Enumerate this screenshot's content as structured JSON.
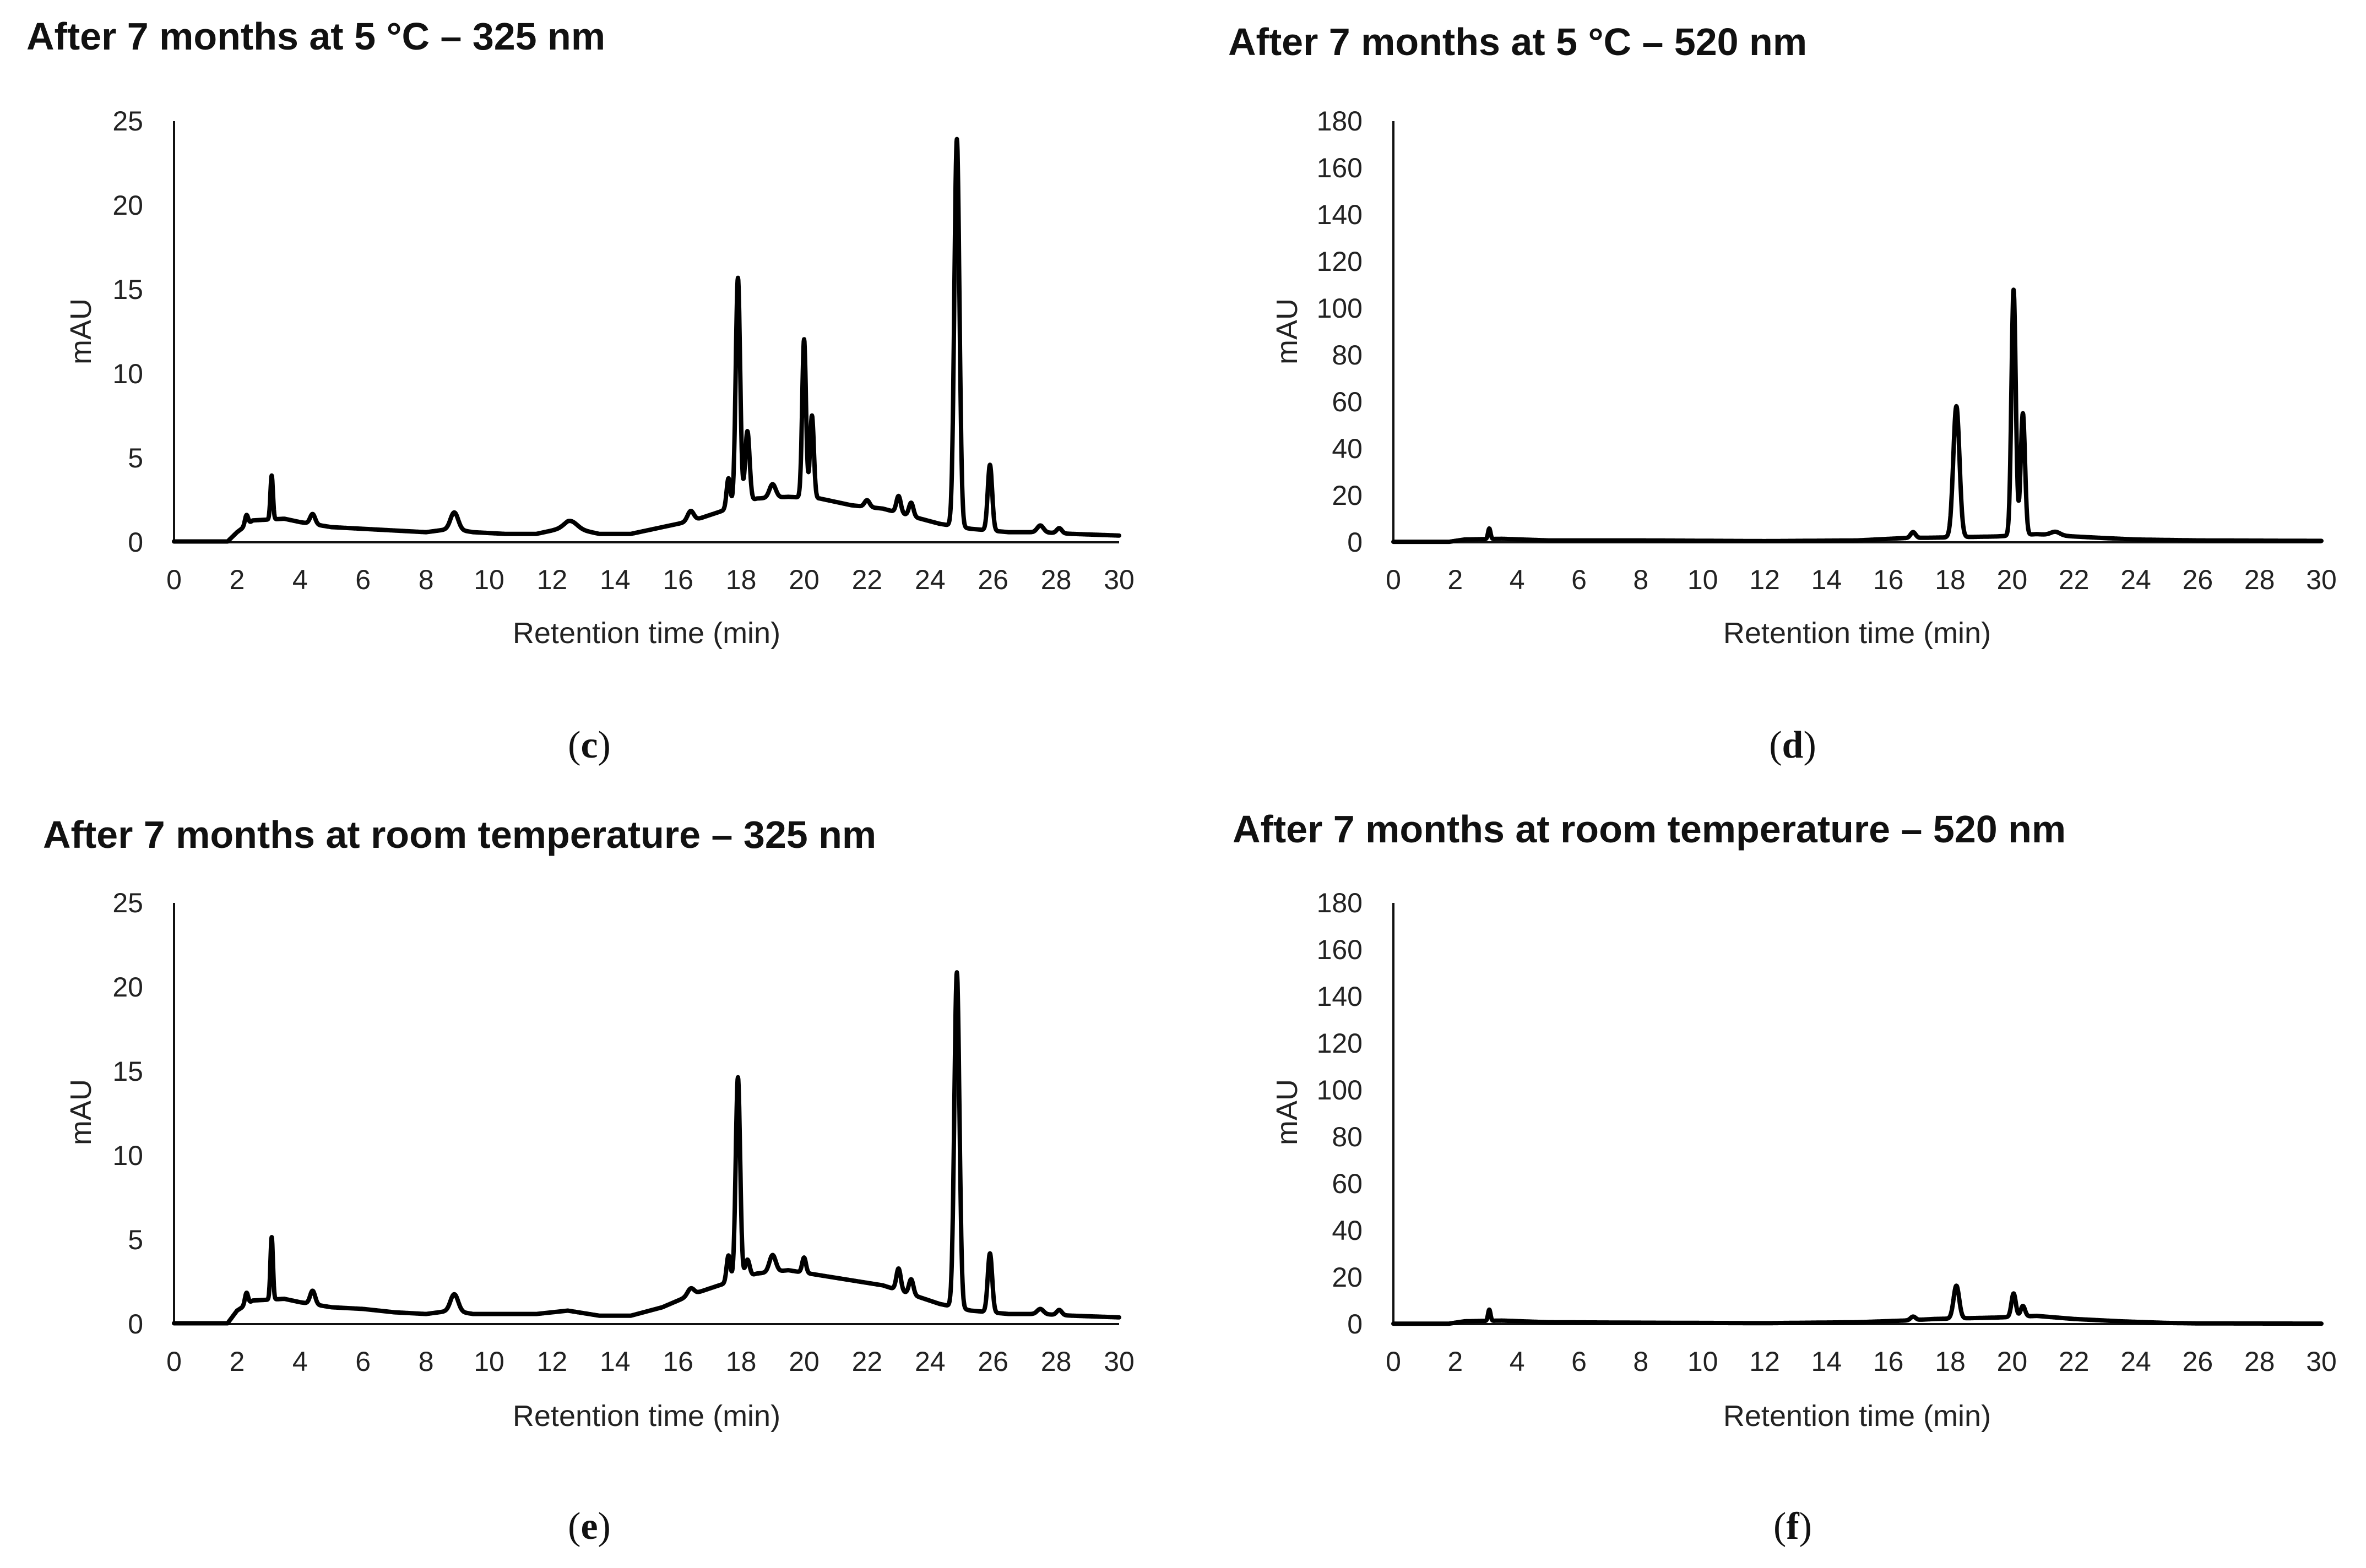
{
  "chart_data": [
    {
      "type": "line",
      "panel": "c",
      "title": "After 7 months at 5 °C – 325 nm",
      "caption_letter": "c",
      "xlabel": "Retention time (min)",
      "ylabel": "mAU",
      "xlim": [
        0,
        30
      ],
      "ylim": [
        0,
        25
      ],
      "xticks": [
        0,
        2,
        4,
        6,
        8,
        10,
        12,
        14,
        16,
        18,
        20,
        22,
        24,
        26,
        28,
        30
      ],
      "yticks": [
        0,
        5,
        10,
        15,
        20,
        25
      ],
      "grid": false,
      "baseline": [
        [
          0,
          0.05
        ],
        [
          1.7,
          0.05
        ],
        [
          2.0,
          0.6
        ],
        [
          2.5,
          1.3
        ],
        [
          3.5,
          1.4
        ],
        [
          4.0,
          1.2
        ],
        [
          5.0,
          0.9
        ],
        [
          6.0,
          0.8
        ],
        [
          7.0,
          0.7
        ],
        [
          8.0,
          0.6
        ],
        [
          8.8,
          0.8
        ],
        [
          9.5,
          0.6
        ],
        [
          10.5,
          0.5
        ],
        [
          11.5,
          0.5
        ],
        [
          12.5,
          0.9
        ],
        [
          13.5,
          0.5
        ],
        [
          14.5,
          0.5
        ],
        [
          15.5,
          0.9
        ],
        [
          16.5,
          1.3
        ],
        [
          17.3,
          1.8
        ],
        [
          18.5,
          2.6
        ],
        [
          19.5,
          2.7
        ],
        [
          20.5,
          2.6
        ],
        [
          21.5,
          2.2
        ],
        [
          22.5,
          2.0
        ],
        [
          23.5,
          1.5
        ],
        [
          24.3,
          1.1
        ],
        [
          25.3,
          0.8
        ],
        [
          26.5,
          0.6
        ],
        [
          27.5,
          0.6
        ],
        [
          28.5,
          0.5
        ],
        [
          30,
          0.4
        ]
      ],
      "peaks": [
        {
          "rt": 2.3,
          "height": 0.6,
          "width": 0.05
        },
        {
          "rt": 3.1,
          "height": 2.6,
          "width": 0.04
        },
        {
          "rt": 4.4,
          "height": 0.6,
          "width": 0.08
        },
        {
          "rt": 8.9,
          "height": 1.0,
          "width": 0.12
        },
        {
          "rt": 12.6,
          "height": 0.4,
          "width": 0.2
        },
        {
          "rt": 16.4,
          "height": 0.6,
          "width": 0.1
        },
        {
          "rt": 17.6,
          "height": 1.8,
          "width": 0.06
        },
        {
          "rt": 17.9,
          "height": 13.5,
          "width": 0.07
        },
        {
          "rt": 18.2,
          "height": 4.2,
          "width": 0.07
        },
        {
          "rt": 19.0,
          "height": 0.8,
          "width": 0.1
        },
        {
          "rt": 20.0,
          "height": 9.4,
          "width": 0.06
        },
        {
          "rt": 20.25,
          "height": 4.9,
          "width": 0.06
        },
        {
          "rt": 22.0,
          "height": 0.4,
          "width": 0.08
        },
        {
          "rt": 23.0,
          "height": 1.0,
          "width": 0.07
        },
        {
          "rt": 23.4,
          "height": 0.8,
          "width": 0.07
        },
        {
          "rt": 24.85,
          "height": 23.0,
          "width": 0.08
        },
        {
          "rt": 25.9,
          "height": 3.9,
          "width": 0.07
        },
        {
          "rt": 27.5,
          "height": 0.4,
          "width": 0.1
        },
        {
          "rt": 28.1,
          "height": 0.3,
          "width": 0.08
        }
      ]
    },
    {
      "type": "line",
      "panel": "d",
      "title": "After 7 months at 5 °C – 520 nm",
      "caption_letter": "d",
      "xlabel": "Retention time (min)",
      "ylabel": "mAU",
      "xlim": [
        0,
        30
      ],
      "ylim": [
        0,
        180
      ],
      "xticks": [
        0,
        2,
        4,
        6,
        8,
        10,
        12,
        14,
        16,
        18,
        20,
        22,
        24,
        26,
        28,
        30
      ],
      "yticks": [
        0,
        20,
        40,
        60,
        80,
        100,
        120,
        140,
        160,
        180
      ],
      "grid": false,
      "baseline": [
        [
          0,
          0.2
        ],
        [
          1.8,
          0.2
        ],
        [
          2.3,
          1.2
        ],
        [
          3.5,
          1.5
        ],
        [
          5,
          0.8
        ],
        [
          8,
          0.8
        ],
        [
          12,
          0.5
        ],
        [
          15,
          0.8
        ],
        [
          16.5,
          1.8
        ],
        [
          17.5,
          2.0
        ],
        [
          19.5,
          2.5
        ],
        [
          20.8,
          3.5
        ],
        [
          22,
          2.5
        ],
        [
          23,
          1.8
        ],
        [
          24,
          1.2
        ],
        [
          26,
          0.8
        ],
        [
          30,
          0.6
        ]
      ],
      "peaks": [
        {
          "rt": 3.1,
          "height": 4.5,
          "width": 0.04
        },
        {
          "rt": 16.8,
          "height": 2.5,
          "width": 0.08
        },
        {
          "rt": 18.2,
          "height": 56.0,
          "width": 0.1
        },
        {
          "rt": 20.05,
          "height": 105.0,
          "width": 0.07
        },
        {
          "rt": 20.35,
          "height": 52.0,
          "width": 0.07
        },
        {
          "rt": 21.4,
          "height": 1.5,
          "width": 0.15
        }
      ]
    },
    {
      "type": "line",
      "panel": "e",
      "title": "After 7 months at room temperature – 325 nm",
      "caption_letter": "e",
      "xlabel": "Retention time (min)",
      "ylabel": "mAU",
      "xlim": [
        0,
        30
      ],
      "ylim": [
        0,
        25
      ],
      "xticks": [
        0,
        2,
        4,
        6,
        8,
        10,
        12,
        14,
        16,
        18,
        20,
        22,
        24,
        26,
        28,
        30
      ],
      "yticks": [
        0,
        5,
        10,
        15,
        20,
        25
      ],
      "grid": false,
      "baseline": [
        [
          0,
          0.05
        ],
        [
          1.7,
          0.05
        ],
        [
          2.0,
          0.8
        ],
        [
          2.5,
          1.4
        ],
        [
          3.5,
          1.5
        ],
        [
          4.0,
          1.3
        ],
        [
          5.0,
          1.0
        ],
        [
          6.0,
          0.9
        ],
        [
          7.0,
          0.7
        ],
        [
          8.0,
          0.6
        ],
        [
          8.8,
          0.8
        ],
        [
          9.5,
          0.6
        ],
        [
          10.5,
          0.6
        ],
        [
          11.5,
          0.6
        ],
        [
          12.5,
          0.8
        ],
        [
          13.5,
          0.5
        ],
        [
          14.5,
          0.5
        ],
        [
          15.5,
          1.0
        ],
        [
          16.5,
          1.8
        ],
        [
          17.3,
          2.3
        ],
        [
          18.5,
          3.0
        ],
        [
          19.5,
          3.2
        ],
        [
          20.5,
          2.9
        ],
        [
          21.5,
          2.6
        ],
        [
          22.5,
          2.3
        ],
        [
          23.5,
          1.7
        ],
        [
          24.3,
          1.2
        ],
        [
          25.3,
          0.8
        ],
        [
          26.5,
          0.6
        ],
        [
          27.5,
          0.6
        ],
        [
          28.5,
          0.5
        ],
        [
          30,
          0.4
        ]
      ],
      "peaks": [
        {
          "rt": 2.3,
          "height": 0.7,
          "width": 0.05
        },
        {
          "rt": 3.1,
          "height": 3.7,
          "width": 0.04
        },
        {
          "rt": 4.4,
          "height": 0.8,
          "width": 0.08
        },
        {
          "rt": 8.9,
          "height": 1.0,
          "width": 0.12
        },
        {
          "rt": 16.4,
          "height": 0.4,
          "width": 0.1
        },
        {
          "rt": 17.6,
          "height": 1.6,
          "width": 0.06
        },
        {
          "rt": 17.9,
          "height": 12.0,
          "width": 0.07
        },
        {
          "rt": 18.2,
          "height": 1.0,
          "width": 0.07
        },
        {
          "rt": 19.0,
          "height": 1.0,
          "width": 0.1
        },
        {
          "rt": 20.0,
          "height": 0.9,
          "width": 0.06
        },
        {
          "rt": 23.0,
          "height": 1.3,
          "width": 0.07
        },
        {
          "rt": 23.4,
          "height": 0.9,
          "width": 0.07
        },
        {
          "rt": 24.85,
          "height": 19.9,
          "width": 0.08
        },
        {
          "rt": 25.9,
          "height": 3.5,
          "width": 0.07
        },
        {
          "rt": 27.5,
          "height": 0.3,
          "width": 0.1
        },
        {
          "rt": 28.1,
          "height": 0.3,
          "width": 0.08
        }
      ]
    },
    {
      "type": "line",
      "panel": "f",
      "title": "After 7 months at room temperature – 520 nm",
      "caption_letter": "f",
      "xlabel": "Retention time (min)",
      "ylabel": "mAU",
      "xlim": [
        0,
        30
      ],
      "ylim": [
        0,
        180
      ],
      "xticks": [
        0,
        2,
        4,
        6,
        8,
        10,
        12,
        14,
        16,
        18,
        20,
        22,
        24,
        26,
        28,
        30
      ],
      "yticks": [
        0,
        20,
        40,
        60,
        80,
        100,
        120,
        140,
        160,
        180
      ],
      "grid": false,
      "baseline": [
        [
          0,
          0.2
        ],
        [
          1.8,
          0.2
        ],
        [
          2.3,
          1.2
        ],
        [
          3.5,
          1.5
        ],
        [
          5,
          0.8
        ],
        [
          8,
          0.6
        ],
        [
          12,
          0.4
        ],
        [
          15,
          0.8
        ],
        [
          16.5,
          1.5
        ],
        [
          17.5,
          2.2
        ],
        [
          19.5,
          2.8
        ],
        [
          20.8,
          3.5
        ],
        [
          22,
          2.2
        ],
        [
          23.5,
          1.2
        ],
        [
          25,
          0.5
        ],
        [
          26,
          0.3
        ],
        [
          30,
          0.2
        ]
      ],
      "peaks": [
        {
          "rt": 3.1,
          "height": 4.8,
          "width": 0.04
        },
        {
          "rt": 16.8,
          "height": 1.5,
          "width": 0.08
        },
        {
          "rt": 18.2,
          "height": 14.0,
          "width": 0.09
        },
        {
          "rt": 20.05,
          "height": 10.0,
          "width": 0.07
        },
        {
          "rt": 20.35,
          "height": 4.5,
          "width": 0.07
        }
      ]
    }
  ]
}
